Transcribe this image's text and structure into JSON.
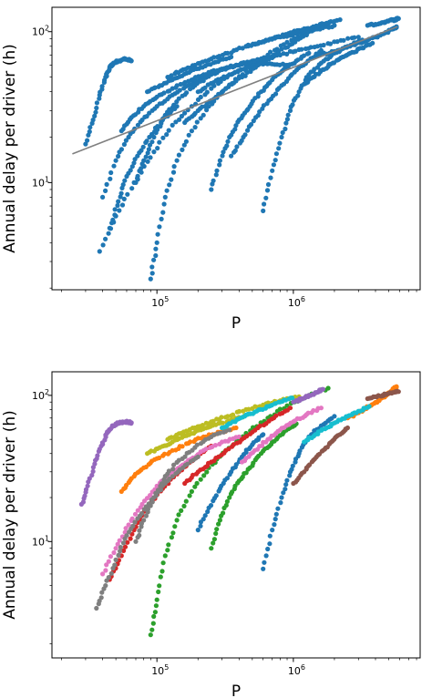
{
  "chart_data": [
    {
      "type": "scatter",
      "title": "",
      "xlabel": "P",
      "ylabel": "Annual delay per driver (h)",
      "xscale": "log",
      "yscale": "log",
      "xlim": [
        17000,
        8500000
      ],
      "ylim": [
        1.95,
        145
      ],
      "x_ticks": [
        {
          "base": "10",
          "exp": "5",
          "value": 100000
        },
        {
          "base": "10",
          "exp": "6",
          "value": 1000000
        }
      ],
      "y_ticks": [
        {
          "base": "10",
          "exp": "1",
          "value": 10
        },
        {
          "base": "10",
          "exp": "2",
          "value": 100
        }
      ],
      "grid": false,
      "legend": "none",
      "point_color": "#1f77b4",
      "fit_line": {
        "color": "#808080",
        "x": [
          24000,
          5800000
        ],
        "y": [
          15.5,
          108
        ]
      },
      "series": [
        {
          "x": [
            30000,
            34000,
            38000,
            42000,
            45000,
            48000,
            52000,
            57000,
            62000,
            65000
          ],
          "y": [
            18,
            26,
            38,
            50,
            58,
            62,
            64,
            66,
            65,
            64
          ]
        },
        {
          "x": [
            40000,
            50000,
            62000,
            78000,
            100000,
            130000,
            170000,
            220000,
            300000,
            400000,
            550000,
            700000,
            900000
          ],
          "y": [
            8,
            14,
            20,
            26,
            32,
            38,
            44,
            50,
            56,
            60,
            62,
            61,
            60
          ]
        },
        {
          "x": [
            90000,
            100000,
            115000,
            140000,
            180000,
            240000,
            320000,
            450000,
            650000,
            900000,
            1300000,
            1800000
          ],
          "y": [
            2.3,
            4,
            8,
            14,
            22,
            32,
            42,
            55,
            70,
            85,
            100,
            112
          ]
        },
        {
          "x": [
            38000,
            50000,
            68000,
            95000,
            130000,
            180000,
            250000,
            350000,
            500000
          ],
          "y": [
            3.5,
            6,
            10,
            16,
            24,
            32,
            42,
            52,
            62
          ]
        },
        {
          "x": [
            120000,
            150000,
            190000,
            250000,
            330000,
            450000,
            600000,
            800000,
            1100000,
            1500000,
            2000000
          ],
          "y": [
            50,
            55,
            60,
            66,
            72,
            80,
            86,
            92,
            98,
            104,
            110
          ]
        },
        {
          "x": [
            200000,
            260000,
            340000,
            450000,
            600000,
            800000,
            1100000,
            1500000,
            2100000,
            3000000
          ],
          "y": [
            40,
            46,
            52,
            58,
            64,
            70,
            76,
            80,
            86,
            92
          ]
        },
        {
          "x": [
            1500000,
            2000000,
            2600000,
            3300000,
            4000000,
            4700000,
            5300000,
            5700000
          ],
          "y": [
            70,
            74,
            80,
            86,
            92,
            98,
            104,
            108
          ]
        },
        {
          "x": [
            3500000,
            4000000,
            4500000,
            5000000,
            5500000,
            5900000
          ],
          "y": [
            110,
            112,
            115,
            118,
            120,
            122
          ]
        },
        {
          "x": [
            600000,
            700000,
            820000,
            950000,
            1100000,
            1300000,
            1600000,
            2000000,
            2500000,
            3200000
          ],
          "y": [
            6.5,
            12,
            20,
            30,
            40,
            52,
            62,
            72,
            80,
            88
          ]
        },
        {
          "x": [
            70000,
            80000,
            95000,
            115000,
            145000,
            190000,
            250000,
            340000,
            460000,
            620000
          ],
          "y": [
            10,
            14,
            20,
            28,
            36,
            44,
            52,
            58,
            63,
            66
          ]
        },
        {
          "x": [
            250000,
            290000,
            340000,
            400000,
            480000,
            580000,
            700000,
            850000,
            1050000,
            1300000
          ],
          "y": [
            9,
            14,
            20,
            26,
            32,
            40,
            48,
            56,
            64,
            72
          ]
        },
        {
          "x": [
            55000,
            65000,
            80000,
            100000,
            130000,
            170000,
            220000,
            290000,
            380000,
            500000,
            660000
          ],
          "y": [
            22,
            27,
            32,
            37,
            42,
            47,
            52,
            56,
            60,
            64,
            68
          ]
        },
        {
          "x": [
            160000,
            200000,
            250000,
            320000,
            420000,
            550000,
            720000,
            950000,
            1250000
          ],
          "y": [
            25,
            30,
            35,
            42,
            50,
            60,
            70,
            82,
            95
          ]
        },
        {
          "x": [
            350000,
            430000,
            530000,
            660000,
            820000,
            1020000,
            1280000,
            1600000
          ],
          "y": [
            15,
            20,
            27,
            35,
            44,
            54,
            64,
            75
          ]
        },
        {
          "x": [
            1200000,
            1400000,
            1650000,
            1950000,
            2300000,
            2700000,
            3200000,
            3800000
          ],
          "y": [
            45,
            50,
            56,
            62,
            68,
            73,
            78,
            84
          ]
        },
        {
          "x": [
            45000,
            52000,
            60000,
            72000,
            88000,
            110000,
            140000
          ],
          "y": [
            5,
            7.5,
            11,
            15,
            20,
            26,
            32
          ]
        },
        {
          "x": [
            450000,
            560000,
            700000,
            880000,
            1100000,
            1400000,
            1750000,
            2200000
          ],
          "y": [
            80,
            85,
            90,
            96,
            102,
            108,
            114,
            120
          ]
        },
        {
          "x": [
            85000,
            105000,
            130000,
            165000,
            210000,
            270000,
            350000
          ],
          "y": [
            40,
            44,
            48,
            53,
            58,
            63,
            68
          ]
        }
      ]
    },
    {
      "type": "scatter",
      "title": "",
      "xlabel": "P",
      "ylabel": "Annual delay per driver (h)",
      "xscale": "log",
      "yscale": "log",
      "xlim": [
        17000,
        8500000
      ],
      "ylim": [
        1.6,
        145
      ],
      "x_ticks": [
        {
          "base": "10",
          "exp": "5",
          "value": 100000
        },
        {
          "base": "10",
          "exp": "6",
          "value": 1000000
        }
      ],
      "y_ticks": [
        {
          "base": "10",
          "exp": "1",
          "value": 10
        },
        {
          "base": "10",
          "exp": "2",
          "value": 100
        }
      ],
      "grid": false,
      "legend": "none",
      "series_colors": [
        "#9467bd",
        "#ff7f0e",
        "#2ca02c",
        "#d62728",
        "#1f77b4",
        "#8c564b",
        "#e377c2",
        "#7f7f7f",
        "#bcbd22",
        "#17becf"
      ],
      "series": [
        {
          "x": [
            28000,
            31000,
            35000,
            39000,
            43000,
            47000,
            51000,
            56000,
            61000,
            65000
          ],
          "y": [
            18,
            24,
            34,
            45,
            55,
            61,
            64,
            66,
            66,
            65
          ]
        },
        {
          "x": [
            2500000,
            3000000,
            3600000,
            4200000,
            4800000,
            5300000,
            5700000
          ],
          "y": [
            70,
            76,
            84,
            92,
            100,
            108,
            115
          ]
        },
        {
          "x": [
            90000,
            100000,
            115000,
            140000,
            180000,
            240000,
            320000,
            450000,
            650000,
            900000,
            1300000,
            1800000
          ],
          "y": [
            2.3,
            4,
            8,
            14,
            22,
            32,
            42,
            55,
            70,
            85,
            100,
            112
          ]
        },
        {
          "x": [
            45000,
            55000,
            68000,
            85000,
            110000,
            145000,
            190000,
            250000
          ],
          "y": [
            5.5,
            8,
            12,
            17,
            23,
            30,
            37,
            45
          ]
        },
        {
          "x": [
            600000,
            700000,
            820000,
            950000,
            1100000,
            1300000,
            1600000,
            2000000
          ],
          "y": [
            6.5,
            12,
            20,
            30,
            40,
            52,
            62,
            72
          ]
        },
        {
          "x": [
            3500000,
            4000000,
            4500000,
            5000000,
            5500000,
            5900000
          ],
          "y": [
            95,
            98,
            100,
            103,
            105,
            106
          ]
        },
        {
          "x": [
            40000,
            50000,
            62000,
            78000,
            100000,
            130000,
            170000,
            220000,
            300000,
            400000
          ],
          "y": [
            6,
            9,
            13,
            18,
            24,
            30,
            36,
            42,
            48,
            52
          ]
        },
        {
          "x": [
            36000,
            42000,
            50000,
            60000,
            75000,
            95000,
            120000,
            155000,
            200000
          ],
          "y": [
            3.5,
            5,
            7.5,
            11,
            15,
            20,
            26,
            32,
            38
          ]
        },
        {
          "x": [
            120000,
            150000,
            190000,
            250000,
            330000,
            450000,
            600000,
            800000,
            1100000
          ],
          "y": [
            50,
            55,
            60,
            66,
            72,
            80,
            86,
            92,
            98
          ]
        },
        {
          "x": [
            1200000,
            1450000,
            1750000,
            2100000,
            2500000,
            3000000,
            3600000
          ],
          "y": [
            48,
            54,
            60,
            66,
            72,
            78,
            84
          ]
        },
        {
          "x": [
            1000000,
            1150000,
            1300000,
            1500000,
            1650000
          ],
          "y": [
            90,
            95,
            100,
            105,
            110
          ]
        },
        {
          "x": [
            55000,
            65000,
            80000,
            100000,
            130000,
            170000,
            220000,
            290000,
            380000
          ],
          "y": [
            22,
            27,
            32,
            37,
            42,
            47,
            52,
            56,
            60
          ]
        },
        {
          "x": [
            250000,
            290000,
            340000,
            400000,
            480000,
            580000,
            700000,
            850000,
            1050000
          ],
          "y": [
            9,
            14,
            20,
            26,
            32,
            40,
            48,
            56,
            64
          ]
        },
        {
          "x": [
            160000,
            200000,
            250000,
            320000,
            420000,
            550000,
            720000,
            950000
          ],
          "y": [
            25,
            30,
            35,
            42,
            50,
            60,
            70,
            82
          ]
        },
        {
          "x": [
            200000,
            240000,
            290000,
            350000,
            420000,
            500000,
            600000
          ],
          "y": [
            12,
            17,
            23,
            30,
            38,
            46,
            54
          ]
        },
        {
          "x": [
            1000000,
            1200000,
            1400000,
            1650000,
            1900000,
            2200000,
            2500000
          ],
          "y": [
            25,
            30,
            36,
            42,
            48,
            54,
            60
          ]
        },
        {
          "x": [
            420000,
            520000,
            650000,
            800000,
            1000000,
            1250000,
            1600000
          ],
          "y": [
            35,
            42,
            50,
            58,
            66,
            74,
            82
          ]
        },
        {
          "x": [
            70000,
            80000,
            95000,
            115000,
            145000,
            190000,
            250000,
            340000
          ],
          "y": [
            10,
            14,
            20,
            28,
            36,
            44,
            52,
            58
          ]
        },
        {
          "x": [
            85000,
            105000,
            130000,
            165000,
            210000,
            270000,
            350000,
            460000
          ],
          "y": [
            40,
            44,
            48,
            53,
            58,
            63,
            68,
            74
          ]
        },
        {
          "x": [
            300000,
            360000,
            440000,
            540000,
            660000,
            800000,
            980000
          ],
          "y": [
            60,
            66,
            72,
            78,
            84,
            90,
            96
          ]
        }
      ]
    }
  ]
}
